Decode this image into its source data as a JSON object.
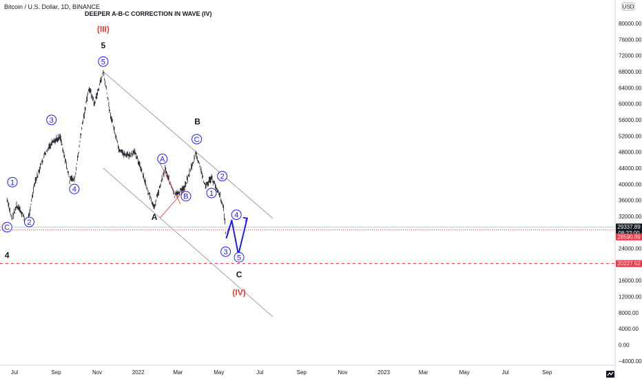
{
  "header": {
    "symbol": "Bitcoin / U.S. Dollar, 1D, BINANCE",
    "title": "DEEPER A-B-C CORRECTION IN WAVE (IV)"
  },
  "currency_badge": "USD",
  "colors": {
    "candle": "#2a2e39",
    "channel": "#9e9e9e",
    "wave_blue": "#1a1aff",
    "wave_red": "#e53935",
    "level_line": "#e53935",
    "current_tag": "#131722",
    "red_tag": "#f23645"
  },
  "price_tags": {
    "current": "29337.89",
    "countdown": "08:22:00",
    "level1": "28590.89",
    "level2": "20227.52"
  },
  "chart_data": {
    "type": "candlestick",
    "title": "DEEPER A-B-C CORRECTION IN WAVE (IV)",
    "symbol": "Bitcoin / U.S. Dollar, 1D, BINANCE",
    "ylim": [
      -4000,
      86000
    ],
    "y_ticks": [
      "−4000.00",
      "0.00",
      "4000.00",
      "8000.00",
      "12000.00",
      "16000.00",
      "20000.00",
      "24000.00",
      "28000.00",
      "32000.00",
      "36000.00",
      "40000.00",
      "44000.00",
      "48000.00",
      "52000.00",
      "56000.00",
      "60000.00",
      "64000.00",
      "68000.00",
      "72000.00",
      "76000.00",
      "80000.00"
    ],
    "x_ticks": [
      "Jul",
      "Sep",
      "Nov",
      "2022",
      "Mar",
      "May",
      "Jul",
      "Sep",
      "Nov",
      "2023",
      "Mar",
      "May",
      "Jul",
      "Sep"
    ],
    "price_path": [
      [
        "2021-06-20",
        36000
      ],
      [
        "2021-06-27",
        31500
      ],
      [
        "2021-07-04",
        34500
      ],
      [
        "2021-07-11",
        33000
      ],
      [
        "2021-07-20",
        30000
      ],
      [
        "2021-07-31",
        40000
      ],
      [
        "2021-08-14",
        47000
      ],
      [
        "2021-08-23",
        49500
      ],
      [
        "2021-09-07",
        52000
      ],
      [
        "2021-09-21",
        41000
      ],
      [
        "2021-09-29",
        41500
      ],
      [
        "2021-10-10",
        55000
      ],
      [
        "2021-10-20",
        64000
      ],
      [
        "2021-10-28",
        60000
      ],
      [
        "2021-11-10",
        68000
      ],
      [
        "2021-11-20",
        58000
      ],
      [
        "2021-12-04",
        48000
      ],
      [
        "2021-12-20",
        47000
      ],
      [
        "2021-12-28",
        48000
      ],
      [
        "2022-01-10",
        41000
      ],
      [
        "2022-01-24",
        34000
      ],
      [
        "2022-02-10",
        44000
      ],
      [
        "2022-02-24",
        37000
      ],
      [
        "2022-03-10",
        39000
      ],
      [
        "2022-03-28",
        47500
      ],
      [
        "2022-04-11",
        39500
      ],
      [
        "2022-04-20",
        41500
      ],
      [
        "2022-05-01",
        38000
      ],
      [
        "2022-05-08",
        34000
      ],
      [
        "2022-05-12",
        26500
      ],
      [
        "2022-05-16",
        29500
      ]
    ],
    "projection": [
      [
        "2022-05-12",
        26500
      ],
      [
        "2022-05-20",
        31000
      ],
      [
        "2022-05-30",
        22500
      ],
      [
        "2022-06-12",
        31500
      ]
    ],
    "channel_lines": [
      [
        [
          "2021-11-10",
          68000
        ],
        [
          "2022-07-20",
          31500
        ]
      ],
      [
        [
          "2021-11-10",
          44000
        ],
        [
          "2022-07-20",
          7000
        ]
      ]
    ],
    "levels": [
      {
        "label": "29337.89",
        "value": 29337.89,
        "style": "solid"
      },
      {
        "label": "28590.89",
        "value": 28590.89,
        "style": "dotted"
      },
      {
        "label": "20227.52",
        "value": 20227.52,
        "style": "dashed"
      }
    ],
    "wave_labels": [
      {
        "text": "1",
        "date": "2021-06-28",
        "price": 40500,
        "circled": true,
        "color": "blue"
      },
      {
        "text": "C",
        "date": "2021-06-20",
        "price": 29300,
        "circled": true,
        "color": "blue"
      },
      {
        "text": "4",
        "date": "2021-06-20",
        "price": 22300,
        "circled": false,
        "color": "black"
      },
      {
        "text": "2",
        "date": "2021-07-23",
        "price": 30600,
        "circled": true,
        "color": "blue"
      },
      {
        "text": "3",
        "date": "2021-08-25",
        "price": 56000,
        "circled": true,
        "color": "blue"
      },
      {
        "text": "4",
        "date": "2021-09-28",
        "price": 38800,
        "circled": true,
        "color": "blue"
      },
      {
        "text": "5",
        "date": "2021-11-10",
        "price": 70500,
        "circled": true,
        "color": "blue"
      },
      {
        "text": "5",
        "date": "2021-11-10",
        "price": 74500,
        "circled": false,
        "color": "black"
      },
      {
        "text": "(III)",
        "date": "2021-11-10",
        "price": 78500,
        "circled": false,
        "color": "red"
      },
      {
        "text": "A",
        "date": "2022-02-06",
        "price": 46300,
        "circled": true,
        "color": "blue"
      },
      {
        "text": "A",
        "date": "2022-01-25",
        "price": 31800,
        "circled": false,
        "color": "black"
      },
      {
        "text": "B",
        "date": "2022-03-13",
        "price": 37000,
        "circled": true,
        "color": "blue"
      },
      {
        "text": "C",
        "date": "2022-03-29",
        "price": 51200,
        "circled": true,
        "color": "blue"
      },
      {
        "text": "B",
        "date": "2022-03-30",
        "price": 55600,
        "circled": false,
        "color": "black"
      },
      {
        "text": "1",
        "date": "2022-04-20",
        "price": 37800,
        "circled": true,
        "color": "blue"
      },
      {
        "text": "2",
        "date": "2022-05-06",
        "price": 42000,
        "circled": true,
        "color": "blue"
      },
      {
        "text": "3",
        "date": "2022-05-11",
        "price": 23200,
        "circled": true,
        "color": "blue"
      },
      {
        "text": "4",
        "date": "2022-05-27",
        "price": 32400,
        "circled": true,
        "color": "blue"
      },
      {
        "text": "5",
        "date": "2022-05-31",
        "price": 21800,
        "circled": true,
        "color": "blue"
      },
      {
        "text": "C",
        "date": "2022-05-31",
        "price": 17500,
        "circled": false,
        "color": "black"
      },
      {
        "text": "(IV)",
        "date": "2022-05-31",
        "price": 13000,
        "circled": false,
        "color": "red"
      }
    ],
    "red_segments": [
      [
        [
          "2022-01-31",
          46000
        ],
        [
          "2022-03-05",
          35000
        ]
      ],
      [
        [
          "2022-02-02",
          31500
        ],
        [
          "2022-03-12",
          38800
        ]
      ]
    ],
    "grid": false
  }
}
